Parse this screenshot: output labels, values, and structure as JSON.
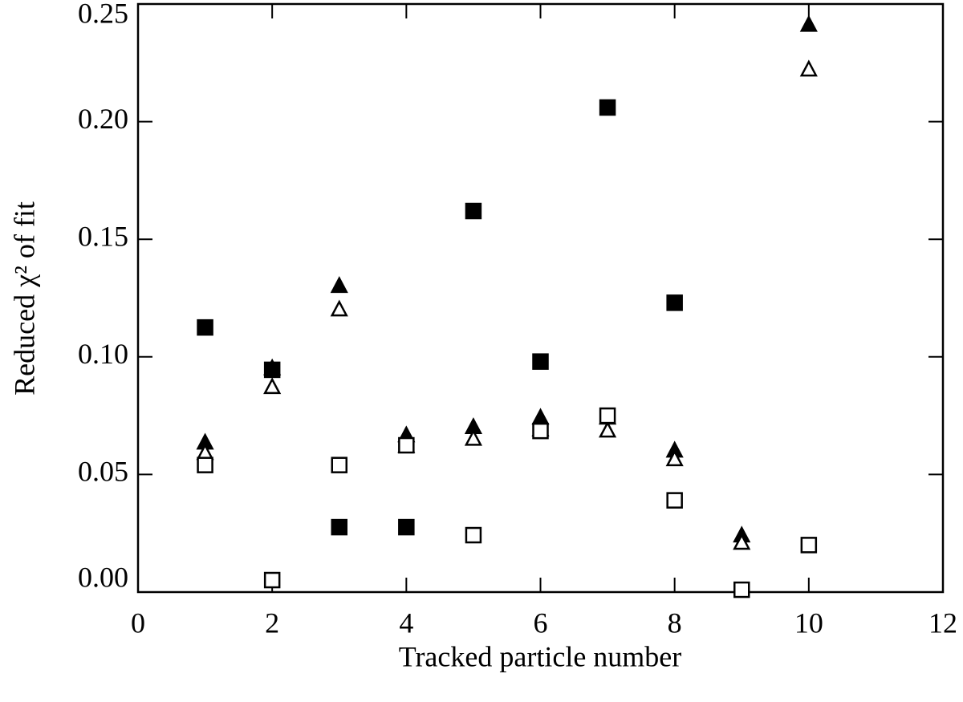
{
  "chart_data": {
    "type": "scatter",
    "xlabel": "Tracked particle number",
    "ylabel": "Reduced χ² of fit",
    "xlim": [
      0,
      12
    ],
    "xticks": [
      0,
      2,
      4,
      6,
      8,
      10,
      12
    ],
    "ylim": [
      0,
      0.25
    ],
    "yticks": [
      {
        "value": 0,
        "label": "0.00"
      },
      0.05,
      {
        "value": 0.1,
        "label": "0.10"
      },
      0.15,
      {
        "value": 0.2,
        "label": "0.20"
      },
      0.25
    ],
    "color": "#000000",
    "series": [
      {
        "marker": "square",
        "filled": true,
        "x": [
          1,
          2,
          3,
          4,
          5,
          6,
          7,
          8
        ],
        "values": [
          0.1125,
          0.0945,
          0.0276,
          0.0276,
          0.162,
          0.098,
          0.206,
          0.123
        ]
      },
      {
        "marker": "triangle",
        "filled": true,
        "x": [
          1,
          2,
          3,
          4,
          5,
          6,
          7,
          8,
          9,
          10
        ],
        "values": [
          0.0634,
          0.095,
          0.13,
          0.0665,
          0.07,
          0.074,
          0.074,
          0.06,
          0.0239,
          0.241
        ]
      },
      {
        "marker": "triangle",
        "filled": false,
        "x": [
          1,
          2,
          3,
          4,
          5,
          6,
          7,
          8,
          9,
          10
        ],
        "values": [
          0.059,
          0.087,
          0.12,
          0.062,
          0.065,
          0.069,
          0.0685,
          0.0563,
          0.0208,
          0.222
        ]
      },
      {
        "marker": "square",
        "filled": false,
        "x": [
          1,
          2,
          3,
          4,
          5,
          6,
          7,
          8,
          9,
          10
        ],
        "values": [
          0.054,
          0.0051,
          0.054,
          0.0624,
          0.0242,
          0.0685,
          0.075,
          0.039,
          0.001,
          0.02
        ]
      }
    ]
  }
}
